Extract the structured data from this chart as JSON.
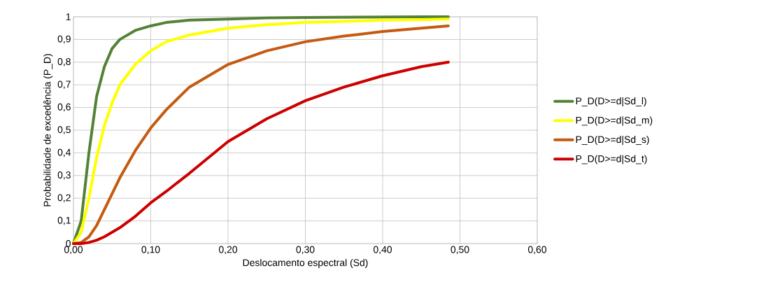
{
  "chart_data": {
    "type": "line",
    "xlabel": "Deslocamento espectral (Sd)",
    "ylabel": "Probabilidade de excedência (P_D)",
    "x": [
      0,
      0.01,
      0.02,
      0.03,
      0.04,
      0.05,
      0.06,
      0.08,
      0.1,
      0.12,
      0.15,
      0.2,
      0.25,
      0.3,
      0.35,
      0.4,
      0.45,
      0.485
    ],
    "series": [
      {
        "name": "P_D(D>=d|Sd_l)",
        "color": "#548235",
        "values": [
          0,
          0.1,
          0.4,
          0.65,
          0.78,
          0.86,
          0.9,
          0.94,
          0.96,
          0.975,
          0.985,
          0.99,
          0.995,
          0.997,
          0.998,
          0.999,
          1,
          1
        ]
      },
      {
        "name": "P_D(D>=d|Sd_m)",
        "color": "#ffff00",
        "values": [
          0,
          0.05,
          0.2,
          0.38,
          0.52,
          0.62,
          0.7,
          0.79,
          0.85,
          0.89,
          0.92,
          0.95,
          0.965,
          0.975,
          0.98,
          0.985,
          0.988,
          0.99
        ]
      },
      {
        "name": "P_D(D>=d|Sd_s)",
        "color": "#c55a11",
        "values": [
          0,
          0.005,
          0.03,
          0.08,
          0.15,
          0.22,
          0.29,
          0.41,
          0.51,
          0.59,
          0.69,
          0.79,
          0.85,
          0.89,
          0.915,
          0.935,
          0.95,
          0.96
        ]
      },
      {
        "name": "P_D(D>=d|Sd_t)",
        "color": "#cc0000",
        "values": [
          0,
          0,
          0.005,
          0.015,
          0.03,
          0.05,
          0.07,
          0.12,
          0.18,
          0.23,
          0.31,
          0.45,
          0.55,
          0.63,
          0.69,
          0.74,
          0.78,
          0.8
        ]
      }
    ],
    "xlim": [
      0,
      0.6
    ],
    "ylim": [
      0,
      1
    ],
    "xticks": [
      {
        "value": 0,
        "label": "0,00"
      },
      {
        "value": 0.1,
        "label": "0,10"
      },
      {
        "value": 0.2,
        "label": "0,20"
      },
      {
        "value": 0.3,
        "label": "0,30"
      },
      {
        "value": 0.4,
        "label": "0,40"
      },
      {
        "value": 0.5,
        "label": "0,50"
      },
      {
        "value": 0.6,
        "label": "0,60"
      }
    ],
    "yticks": [
      0,
      {
        "value": 0.1,
        "label": "0,1"
      },
      {
        "value": 0.2,
        "label": "0,2"
      },
      {
        "value": 0.3,
        "label": "0,3"
      },
      {
        "value": 0.4,
        "label": "0,4"
      },
      {
        "value": 0.5,
        "label": "0,5"
      },
      {
        "value": 0.6,
        "label": "0,6"
      },
      {
        "value": 0.7,
        "label": "0,7"
      },
      {
        "value": 0.8,
        "label": "0,8"
      },
      {
        "value": 0.9,
        "label": "0,9"
      },
      1
    ],
    "grid": true,
    "legend": "right",
    "marker": "none",
    "line_style": "solid"
  }
}
